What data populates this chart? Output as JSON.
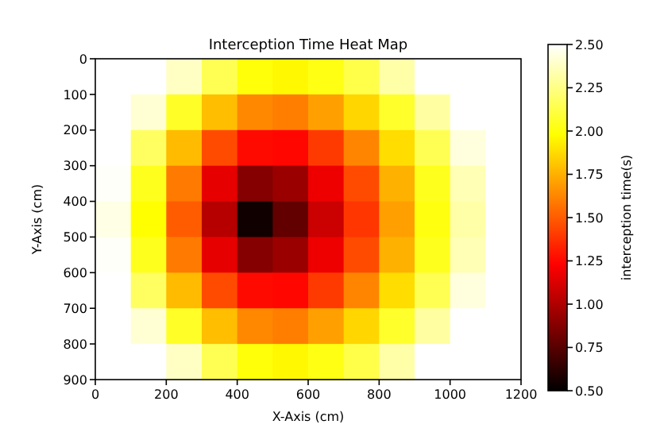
{
  "chart_data": {
    "type": "heatmap",
    "title": "Interception Time Heat Map",
    "xlabel": "X-Axis (cm)",
    "ylabel": "Y-Axis (cm)",
    "clabel": "interception time(s)",
    "cells": [
      [
        2.5,
        2.5,
        2.38,
        2.15,
        2.0,
        1.96,
        2.02,
        2.13,
        2.32,
        2.5,
        2.5,
        2.5
      ],
      [
        2.5,
        2.41,
        2.06,
        1.79,
        1.63,
        1.6,
        1.7,
        1.86,
        2.07,
        2.31,
        2.5,
        2.5
      ],
      [
        2.5,
        2.18,
        1.78,
        1.45,
        1.26,
        1.25,
        1.4,
        1.62,
        1.88,
        2.15,
        2.43,
        2.5
      ],
      [
        2.49,
        2.04,
        1.59,
        1.16,
        0.88,
        0.94,
        1.18,
        1.45,
        1.75,
        2.04,
        2.35,
        2.5
      ],
      [
        2.45,
        1.98,
        1.5,
        1.02,
        0.55,
        0.78,
        1.08,
        1.39,
        1.7,
        2.01,
        2.32,
        2.5
      ],
      [
        2.49,
        2.04,
        1.59,
        1.16,
        0.88,
        0.94,
        1.18,
        1.45,
        1.75,
        2.04,
        2.35,
        2.5
      ],
      [
        2.5,
        2.18,
        1.78,
        1.45,
        1.26,
        1.25,
        1.4,
        1.62,
        1.88,
        2.15,
        2.43,
        2.5
      ],
      [
        2.5,
        2.41,
        2.06,
        1.79,
        1.63,
        1.6,
        1.7,
        1.86,
        2.07,
        2.31,
        2.5,
        2.5
      ],
      [
        2.5,
        2.5,
        2.38,
        2.15,
        2.0,
        1.96,
        2.02,
        2.13,
        2.32,
        2.5,
        2.5,
        2.5
      ]
    ],
    "xlim": [
      0,
      1200
    ],
    "ylim": [
      900,
      0
    ],
    "xticks": [
      0,
      200,
      400,
      600,
      800,
      1000,
      1200
    ],
    "yticks": [
      0,
      100,
      200,
      300,
      400,
      500,
      600,
      700,
      800,
      900
    ],
    "clim": [
      0.5,
      2.5
    ],
    "cticks": [
      {
        "value": 0.5,
        "label": "0.50"
      },
      {
        "value": 0.75,
        "label": "0.75"
      },
      {
        "value": 1.0,
        "label": "1.00"
      },
      {
        "value": 1.25,
        "label": "1.25"
      },
      {
        "value": 1.5,
        "label": "1.50"
      },
      {
        "value": 1.75,
        "label": "1.75"
      },
      {
        "value": 2.0,
        "label": "2.00"
      },
      {
        "value": 2.25,
        "label": "2.25"
      },
      {
        "value": 2.5,
        "label": "2.50"
      }
    ]
  }
}
